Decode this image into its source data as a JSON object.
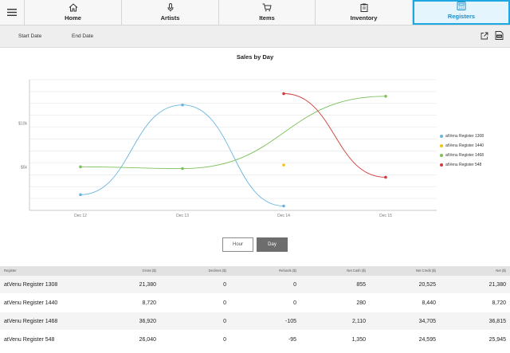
{
  "nav": {
    "tabs": [
      {
        "label": "Home",
        "icon": "home-icon",
        "active": false
      },
      {
        "label": "Artists",
        "icon": "microphone-icon",
        "active": false
      },
      {
        "label": "Items",
        "icon": "cart-icon",
        "active": false
      },
      {
        "label": "Inventory",
        "icon": "clipboard-icon",
        "active": false
      },
      {
        "label": "Registers",
        "icon": "register-icon",
        "active": true
      }
    ]
  },
  "datebar": {
    "start_label": "Start Date",
    "end_label": "End Date"
  },
  "chart_data": {
    "type": "line",
    "title": "Sales by Day",
    "categories": [
      "Dec 12",
      "Dec 13",
      "Dec 14",
      "Dec 15"
    ],
    "y_ticks": [
      {
        "value": 10000,
        "label": "$10k"
      },
      {
        "value": 5000,
        "label": "$5k"
      }
    ],
    "ylim": [
      0,
      15000
    ],
    "grid": true,
    "legend_position": "right",
    "series": [
      {
        "name": "atVenu Register 1308",
        "color": "#6ab6e0",
        "values": [
          1800,
          12100,
          500,
          null
        ]
      },
      {
        "name": "atVenu Register 1440",
        "color": "#f4c20d",
        "values": [
          null,
          null,
          5200,
          null
        ]
      },
      {
        "name": "atVenu Register 1468",
        "color": "#7cc05a",
        "values": [
          5000,
          4800,
          null,
          13100
        ]
      },
      {
        "name": "atVenu Register 548",
        "color": "#d03b3b",
        "values": [
          null,
          null,
          13400,
          3800
        ]
      }
    ]
  },
  "toggle": {
    "hour_label": "Hour",
    "day_label": "Day",
    "selected": "Day"
  },
  "table": {
    "headers": [
      "Register",
      "Gross ($)",
      "Declines ($)",
      "Refunds ($)",
      "Net Cash ($)",
      "Net Credit ($)",
      "Net ($)"
    ],
    "rows": [
      [
        "atVenu Register 1308",
        "21,380",
        "0",
        "0",
        "855",
        "20,525",
        "21,380"
      ],
      [
        "atVenu Register 1440",
        "8,720",
        "0",
        "0",
        "280",
        "8,440",
        "8,720"
      ],
      [
        "atVenu Register 1468",
        "36,920",
        "0",
        "-105",
        "2,110",
        "34,705",
        "36,815"
      ],
      [
        "atVenu Register 548",
        "26,040",
        "0",
        "-95",
        "1,350",
        "24,595",
        "25,945"
      ]
    ]
  }
}
